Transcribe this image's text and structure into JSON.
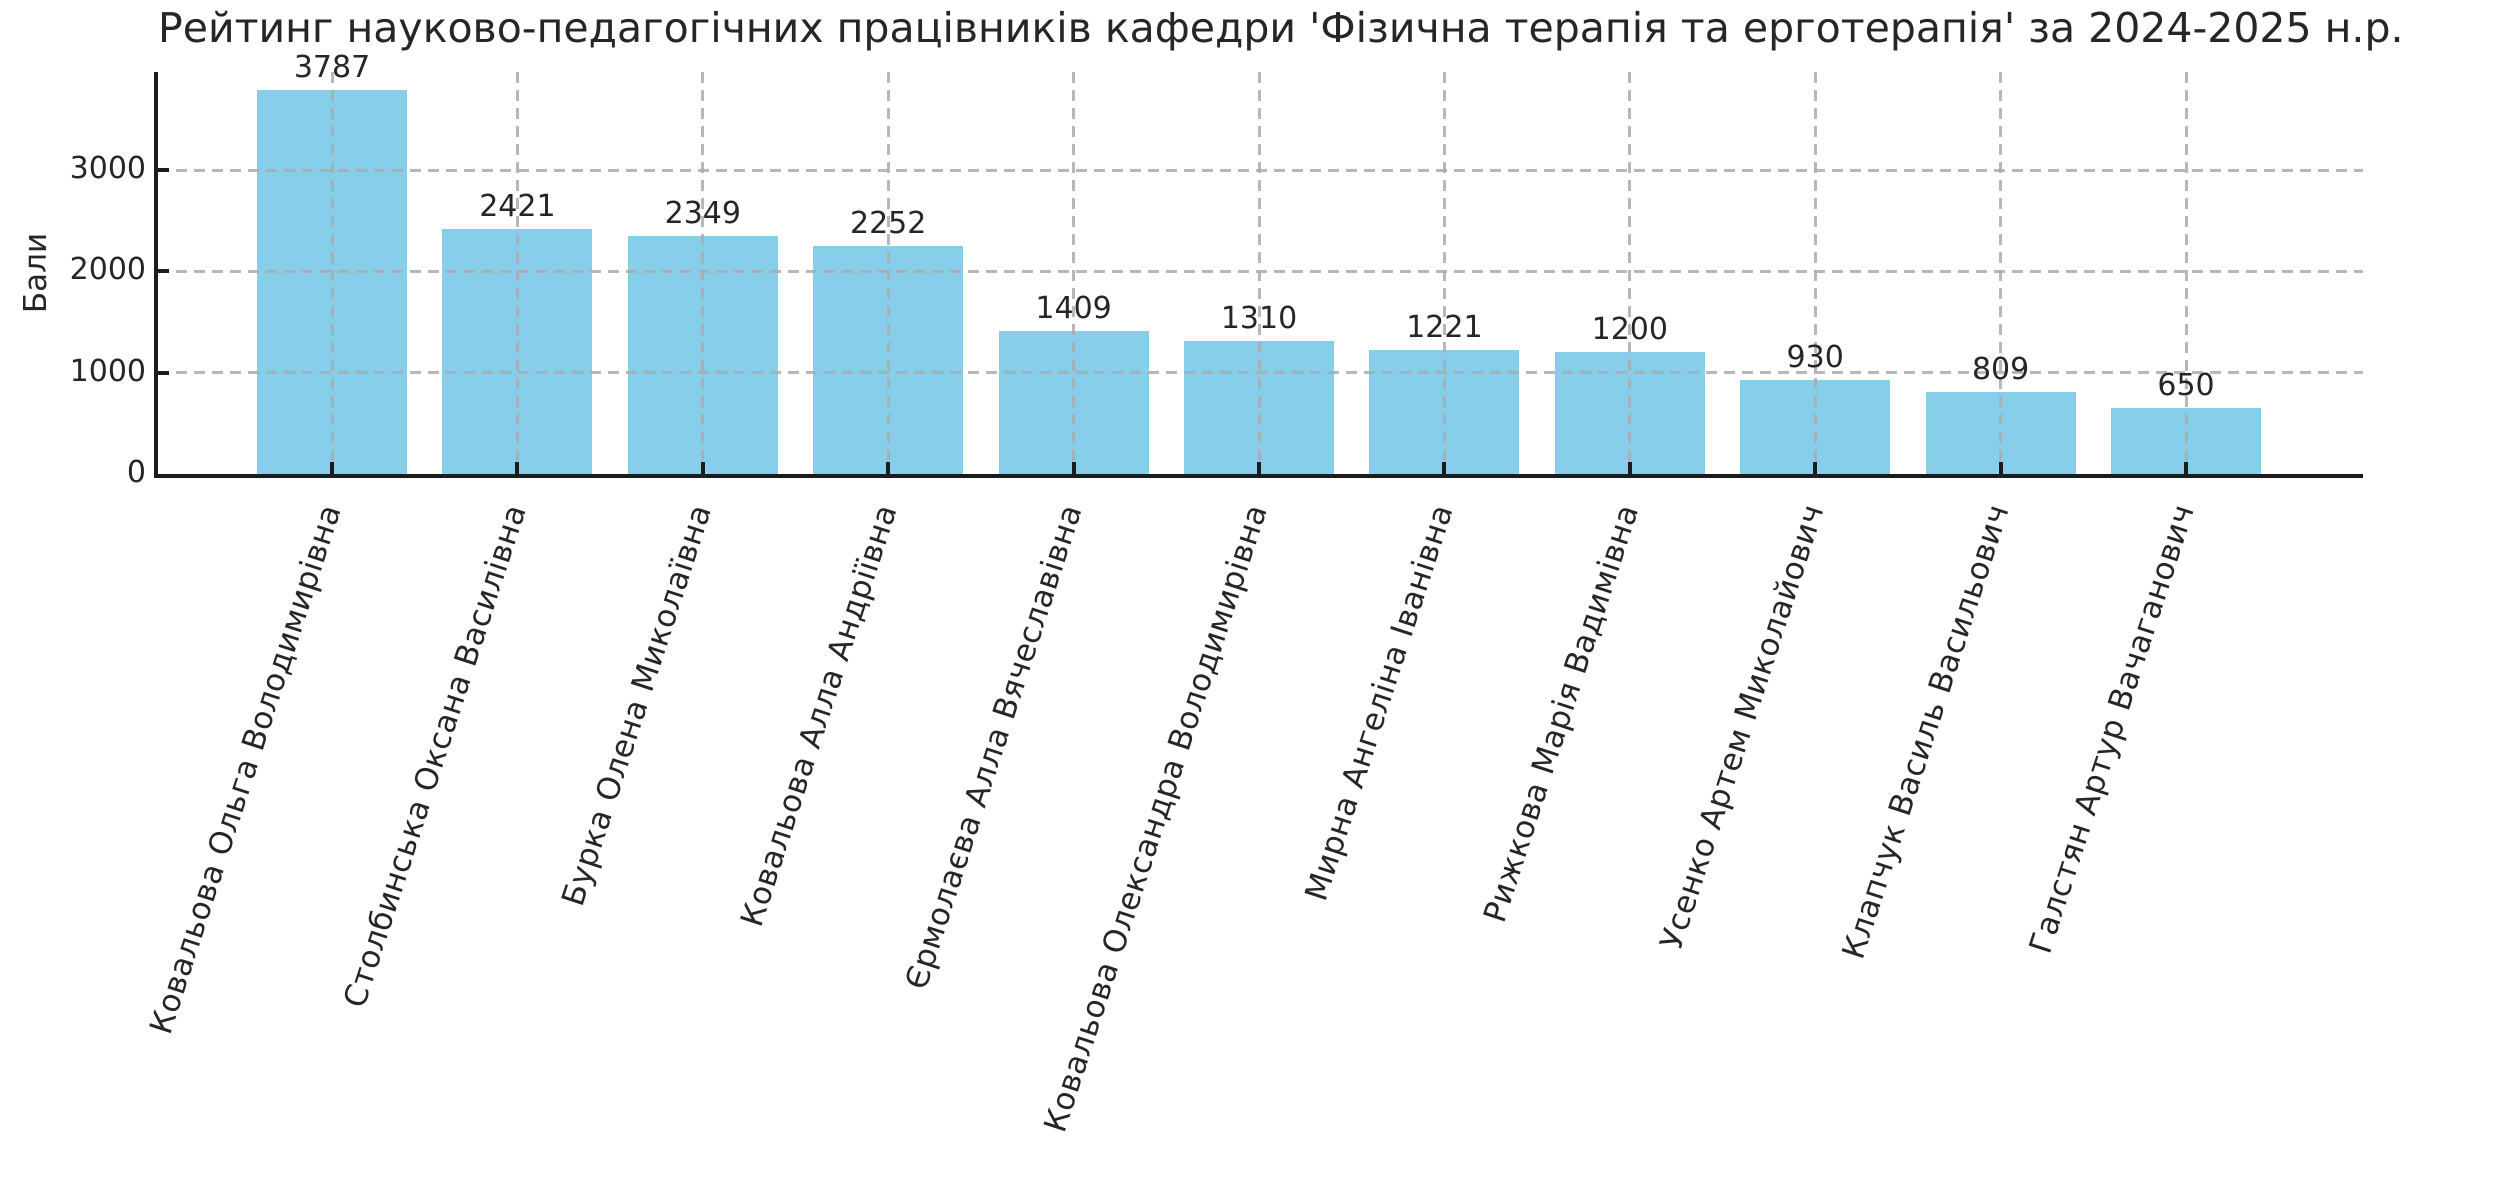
{
  "chart_data": {
    "type": "bar",
    "title": "Рейтинг науково-педагогічних працівників кафедри 'Фізична терапія та ерготерапія' за 2024-2025 н.р.",
    "ylabel": "Бали",
    "xlabel": "",
    "categories": [
      "Ковальова Ольга Володимирівна",
      "Столбинська Оксана Василівна",
      "Бурка Олена Миколаївна",
      "Ковальова Алла Андріївна",
      "Єрмолаєва Алла Вячеславівна",
      "Ковальова Олександра Володимирівна",
      "Мирна Ангеліна Іванівна",
      "Рижкова Марія Вадимівна",
      "Усенко Артем Миколайович",
      "Клапчук Василь Васильович",
      "Галстян Артур Вачаганович"
    ],
    "values": [
      3787,
      2421,
      2349,
      2252,
      1409,
      1310,
      1221,
      1200,
      930,
      809,
      650
    ],
    "yticks": [
      0,
      1000,
      2000,
      3000
    ],
    "ylim": [
      0,
      3968
    ],
    "grid": true,
    "grid_style": "dashed",
    "legend": "none",
    "xtick_rotation_deg": 72,
    "colors": {
      "bar": "#87CEEB",
      "grid": "#b0b0b0",
      "axis": "#1c1c1c",
      "text": "#262626"
    }
  }
}
